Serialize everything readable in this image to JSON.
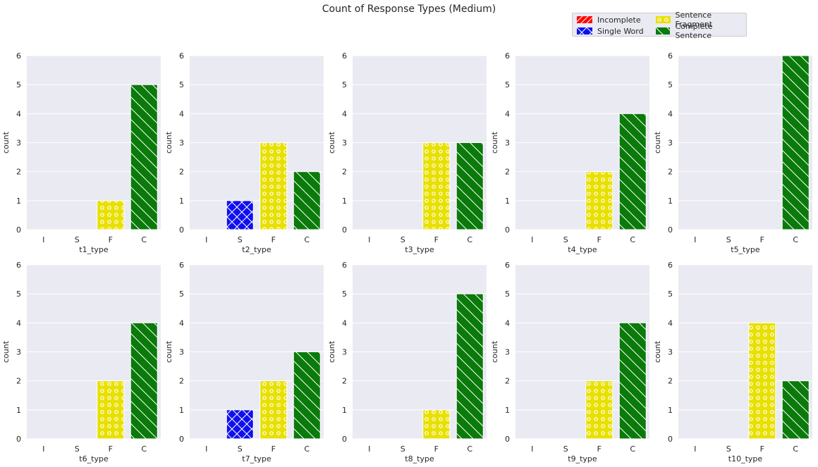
{
  "chart_data": {
    "type": "bar",
    "title": "Count of Response Types (Medium)",
    "categories": [
      "I",
      "S",
      "F",
      "C"
    ],
    "ylabel": "count",
    "ylim": [
      0,
      6
    ],
    "yticks": [
      "0",
      "1",
      "2",
      "3",
      "4",
      "5",
      "6"
    ],
    "grid": true,
    "legend_placement": "top-right",
    "legend": [
      {
        "label": "Incomplete",
        "color": "#ff0000",
        "hatch": "diagonal-forward"
      },
      {
        "label": "Single Word",
        "color": "#0000ff",
        "hatch": "cross"
      },
      {
        "label": "Sentence Fragment",
        "color": "#ffff00",
        "hatch": "circles"
      },
      {
        "label": "Complete Sentence",
        "color": "#008000",
        "hatch": "diagonal-back"
      }
    ],
    "subplots": [
      {
        "xlabel": "t1_type",
        "values": [
          0,
          0,
          1,
          5
        ]
      },
      {
        "xlabel": "t2_type",
        "values": [
          0,
          1,
          3,
          2
        ]
      },
      {
        "xlabel": "t3_type",
        "values": [
          0,
          0,
          3,
          3
        ]
      },
      {
        "xlabel": "t4_type",
        "values": [
          0,
          0,
          2,
          4
        ]
      },
      {
        "xlabel": "t5_type",
        "values": [
          0,
          0,
          0,
          6
        ]
      },
      {
        "xlabel": "t6_type",
        "values": [
          0,
          0,
          2,
          4
        ]
      },
      {
        "xlabel": "t7_type",
        "values": [
          0,
          1,
          2,
          3
        ]
      },
      {
        "xlabel": "t8_type",
        "values": [
          0,
          0,
          1,
          5
        ]
      },
      {
        "xlabel": "t9_type",
        "values": [
          0,
          0,
          2,
          4
        ]
      },
      {
        "xlabel": "t10_type",
        "values": [
          0,
          0,
          4,
          2
        ]
      }
    ]
  }
}
